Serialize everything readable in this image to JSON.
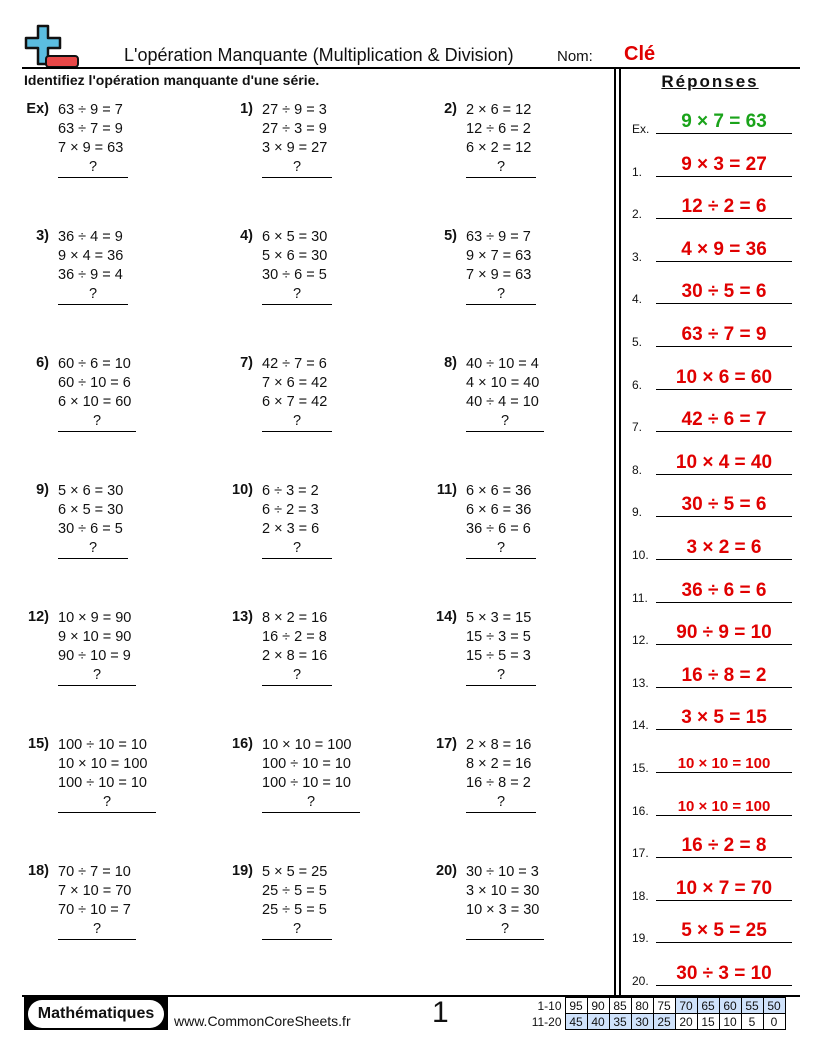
{
  "header": {
    "title": "L'opération Manquante (Multiplication & Division)",
    "name_label": "Nom:",
    "name_value": "Clé",
    "instructions": "Identifiez l'opération manquante d'une série.",
    "logo_icon": "plus-minus-logo"
  },
  "problems": [
    {
      "label": "Ex)",
      "lines": [
        "63 ÷ 9 = 7",
        "63 ÷ 7 = 9",
        "7 × 9 = 63"
      ],
      "blank": "?"
    },
    {
      "label": "1)",
      "lines": [
        "27 ÷ 9 = 3",
        "27 ÷ 3 = 9",
        "3 × 9 = 27"
      ],
      "blank": "?"
    },
    {
      "label": "2)",
      "lines": [
        "2 × 6 = 12",
        "12 ÷ 6 = 2",
        "6 × 2 = 12"
      ],
      "blank": "?"
    },
    {
      "label": "3)",
      "lines": [
        "36 ÷ 4 = 9",
        "9 × 4 = 36",
        "36 ÷ 9 = 4"
      ],
      "blank": "?"
    },
    {
      "label": "4)",
      "lines": [
        "6 × 5 = 30",
        "5 × 6 = 30",
        "30 ÷ 6 = 5"
      ],
      "blank": "?"
    },
    {
      "label": "5)",
      "lines": [
        "63 ÷ 9 = 7",
        "9 × 7 = 63",
        "7 × 9 = 63"
      ],
      "blank": "?"
    },
    {
      "label": "6)",
      "lines": [
        "60 ÷ 6 = 10",
        "60 ÷ 10 = 6",
        "6 × 10 = 60"
      ],
      "blank": "?"
    },
    {
      "label": "7)",
      "lines": [
        "42 ÷ 7 = 6",
        "7 × 6 = 42",
        "6 × 7 = 42"
      ],
      "blank": "?"
    },
    {
      "label": "8)",
      "lines": [
        "40 ÷ 10 = 4",
        "4 × 10 = 40",
        "40 ÷ 4 = 10"
      ],
      "blank": "?"
    },
    {
      "label": "9)",
      "lines": [
        "5 × 6 = 30",
        "6 × 5 = 30",
        "30 ÷ 6 = 5"
      ],
      "blank": "?"
    },
    {
      "label": "10)",
      "lines": [
        "6 ÷ 3 = 2",
        "6 ÷ 2 = 3",
        "2 × 3 = 6"
      ],
      "blank": "?"
    },
    {
      "label": "11)",
      "lines": [
        "6 × 6 = 36",
        "6 × 6 = 36",
        "36 ÷ 6 = 6"
      ],
      "blank": "?"
    },
    {
      "label": "12)",
      "lines": [
        "10 × 9 = 90",
        "9 × 10 = 90",
        "90 ÷ 10 = 9"
      ],
      "blank": "?"
    },
    {
      "label": "13)",
      "lines": [
        "8 × 2 = 16",
        "16 ÷ 2 = 8",
        "2 × 8 = 16"
      ],
      "blank": "?"
    },
    {
      "label": "14)",
      "lines": [
        "5 × 3 = 15",
        "15 ÷ 3 = 5",
        "15 ÷ 5 = 3"
      ],
      "blank": "?"
    },
    {
      "label": "15)",
      "lines": [
        "100 ÷ 10 = 10",
        "10 × 10 = 100",
        "100 ÷ 10 = 10"
      ],
      "blank": "?"
    },
    {
      "label": "16)",
      "lines": [
        "10 × 10 = 100",
        "100 ÷ 10 = 10",
        "100 ÷ 10 = 10"
      ],
      "blank": "?"
    },
    {
      "label": "17)",
      "lines": [
        "2 × 8 = 16",
        "8 × 2 = 16",
        "16 ÷ 8 = 2"
      ],
      "blank": "?"
    },
    {
      "label": "18)",
      "lines": [
        "70 ÷ 7 = 10",
        "7 × 10 = 70",
        "70 ÷ 10 = 7"
      ],
      "blank": "?"
    },
    {
      "label": "19)",
      "lines": [
        "5 × 5 = 25",
        "25 ÷ 5 = 5",
        "25 ÷ 5 = 5"
      ],
      "blank": "?"
    },
    {
      "label": "20)",
      "lines": [
        "30 ÷ 10 = 3",
        "3 × 10 = 30",
        "10 × 3 = 30"
      ],
      "blank": "?"
    }
  ],
  "answers": {
    "title": "Réponses",
    "items": [
      {
        "label": "Ex.",
        "value": "9 × 7 = 63",
        "color": "#1aa31a"
      },
      {
        "label": "1.",
        "value": "9 × 3 = 27"
      },
      {
        "label": "2.",
        "value": "12 ÷ 2 = 6"
      },
      {
        "label": "3.",
        "value": "4 × 9 = 36"
      },
      {
        "label": "4.",
        "value": "30 ÷ 5 = 6"
      },
      {
        "label": "5.",
        "value": "63 ÷ 7 = 9"
      },
      {
        "label": "6.",
        "value": "10 × 6 = 60"
      },
      {
        "label": "7.",
        "value": "42 ÷ 6 = 7"
      },
      {
        "label": "8.",
        "value": "10 × 4 = 40"
      },
      {
        "label": "9.",
        "value": "30 ÷ 5 = 6"
      },
      {
        "label": "10.",
        "value": "3 × 2 = 6"
      },
      {
        "label": "11.",
        "value": "36 ÷ 6 = 6"
      },
      {
        "label": "12.",
        "value": "90 ÷ 9 = 10"
      },
      {
        "label": "13.",
        "value": "16 ÷ 8 = 2"
      },
      {
        "label": "14.",
        "value": "3 × 5 = 15"
      },
      {
        "label": "15.",
        "value": "10 × 10 = 100"
      },
      {
        "label": "16.",
        "value": "10 × 10 = 100"
      },
      {
        "label": "17.",
        "value": "16 ÷ 2 = 8"
      },
      {
        "label": "18.",
        "value": "10 × 7 = 70"
      },
      {
        "label": "19.",
        "value": "5 × 5 = 25"
      },
      {
        "label": "20.",
        "value": "30 ÷ 3 = 10"
      }
    ],
    "color": "#e00000"
  },
  "footer": {
    "brand": "Mathématiques",
    "site": "www.CommonCoreSheets.fr",
    "page": "1",
    "score_rows": [
      {
        "label": "1-10",
        "values": [
          "95",
          "90",
          "85",
          "80",
          "75",
          "70",
          "65",
          "60",
          "55",
          "50"
        ]
      },
      {
        "label": "11-20",
        "values": [
          "45",
          "40",
          "35",
          "30",
          "25",
          "20",
          "15",
          "10",
          "5",
          "0"
        ]
      }
    ]
  }
}
